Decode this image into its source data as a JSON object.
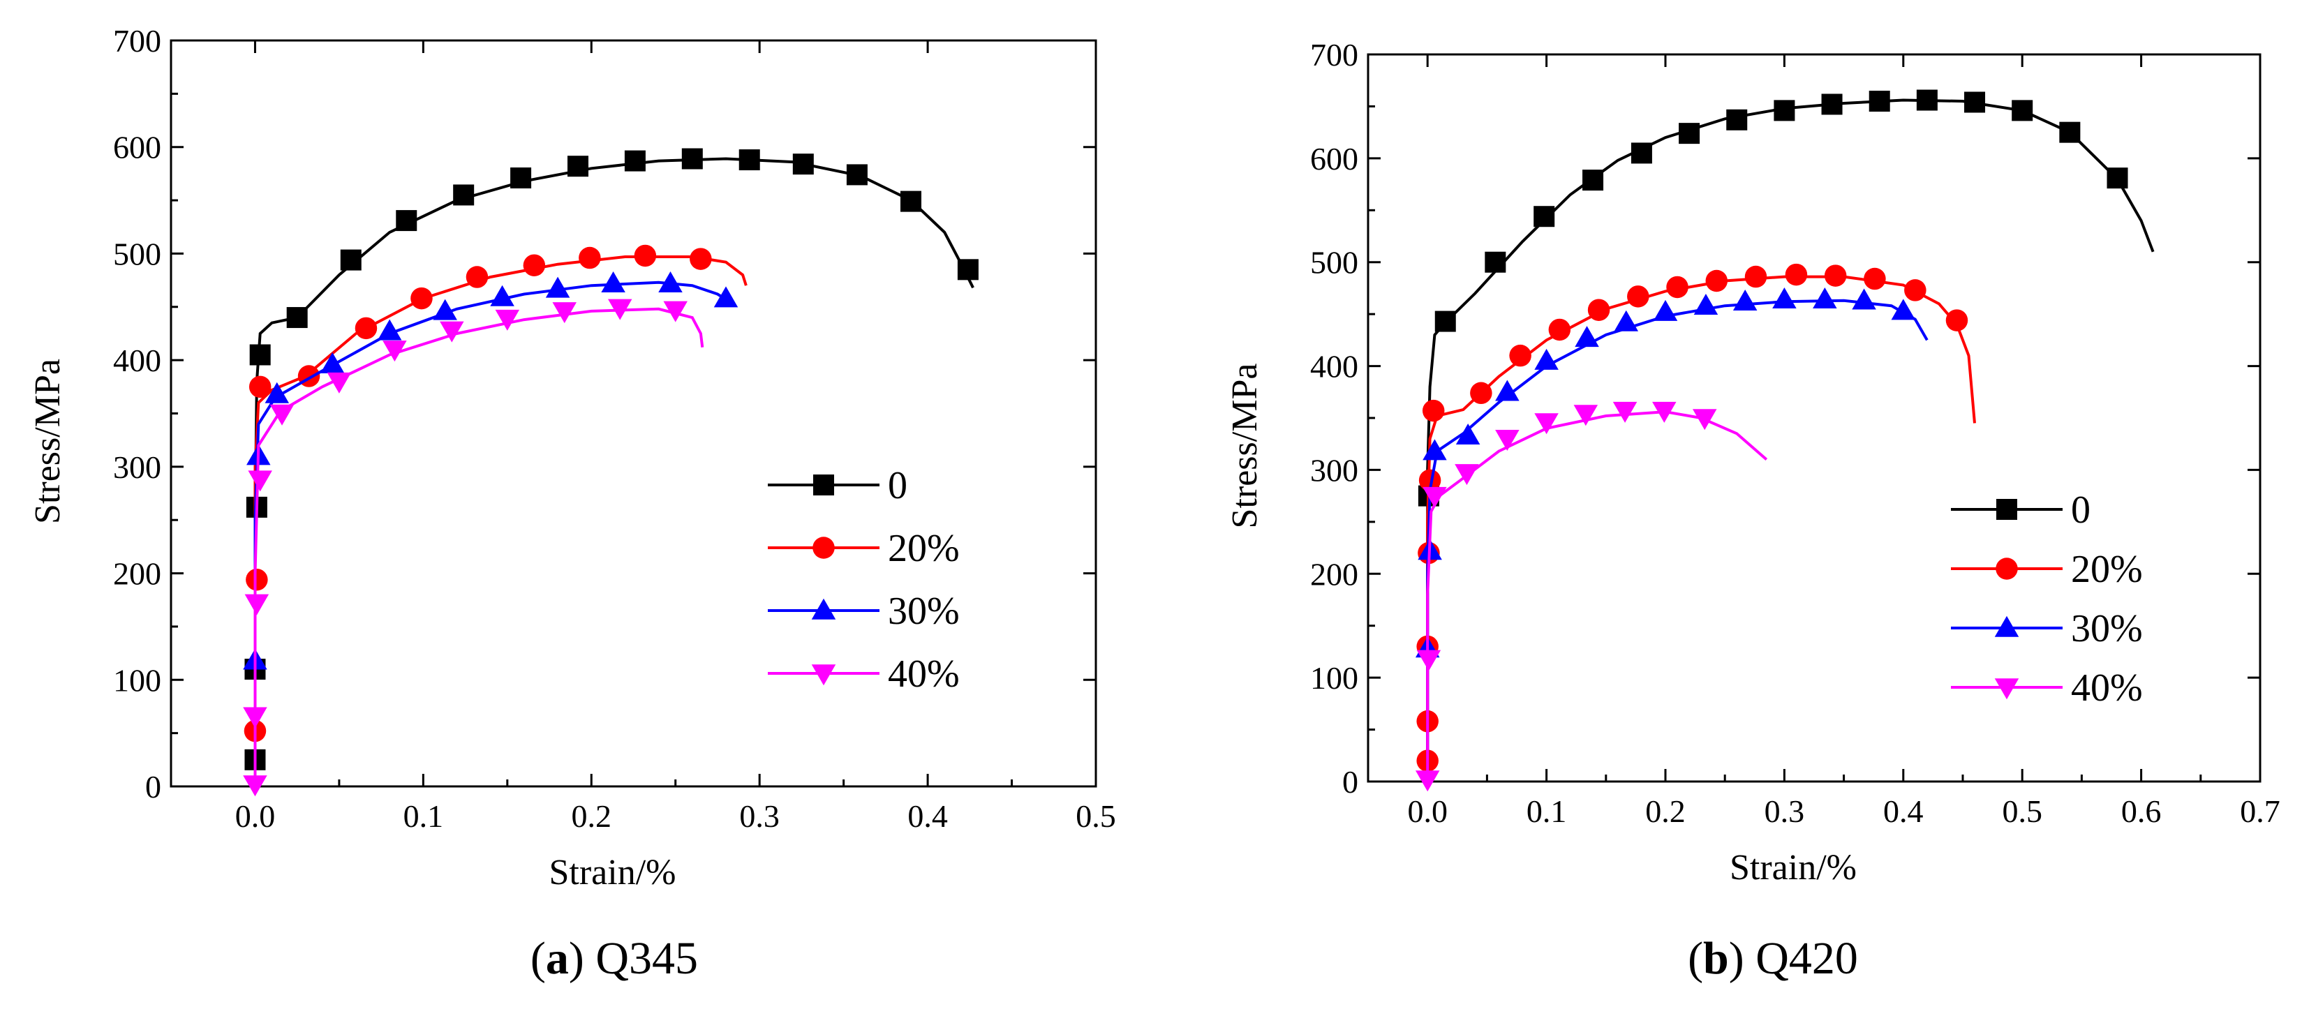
{
  "captions": [
    {
      "id": "a",
      "letter": "a",
      "text": "Q345"
    },
    {
      "id": "b",
      "letter": "b",
      "text": "Q420"
    }
  ],
  "series_colors": {
    "0": "#000000",
    "20%": "#ff0000",
    "30%": "#0000ff",
    "40%": "#ff00ff"
  },
  "chart_data": [
    {
      "type": "line",
      "title": "",
      "xlabel": "Strain/%",
      "ylabel": "Stress/MPa",
      "xlim": [
        -0.05,
        0.5
      ],
      "ylim": [
        0,
        700
      ],
      "xticks": [
        0.0,
        0.1,
        0.2,
        0.3,
        0.4,
        0.5
      ],
      "xtick_labels": [
        "0.0",
        "0.1",
        "0.2",
        "0.3",
        "0.4",
        "0.5"
      ],
      "yticks": [
        0,
        100,
        200,
        300,
        400,
        500,
        600,
        700
      ],
      "ytick_labels": [
        "0",
        "100",
        "200",
        "300",
        "400",
        "500",
        "600",
        "700"
      ],
      "grid": false,
      "legend_position": "right",
      "series": [
        {
          "name": "0",
          "marker": "square",
          "color": "#000000",
          "line": [
            [
              0.0,
              0
            ],
            [
              0.0,
              100
            ],
            [
              0.0,
              250
            ],
            [
              0.001,
              380
            ],
            [
              0.003,
              425
            ],
            [
              0.01,
              435
            ],
            [
              0.025,
              440
            ],
            [
              0.05,
              480
            ],
            [
              0.08,
              520
            ],
            [
              0.12,
              550
            ],
            [
              0.16,
              568
            ],
            [
              0.2,
              580
            ],
            [
              0.24,
              587
            ],
            [
              0.28,
              589
            ],
            [
              0.32,
              586
            ],
            [
              0.36,
              573
            ],
            [
              0.39,
              550
            ],
            [
              0.41,
              520
            ],
            [
              0.42,
              490
            ],
            [
              0.427,
              468
            ]
          ],
          "markers": [
            [
              0.0,
              25
            ],
            [
              0.0,
              110
            ],
            [
              0.001,
              262
            ],
            [
              0.003,
              405
            ],
            [
              0.025,
              440
            ],
            [
              0.057,
              494
            ],
            [
              0.09,
              531
            ],
            [
              0.124,
              555
            ],
            [
              0.158,
              571
            ],
            [
              0.192,
              582
            ],
            [
              0.226,
              587
            ],
            [
              0.26,
              589
            ],
            [
              0.294,
              588
            ],
            [
              0.326,
              584
            ],
            [
              0.358,
              574
            ],
            [
              0.39,
              549
            ],
            [
              0.424,
              485
            ]
          ]
        },
        {
          "name": "20%",
          "marker": "circle",
          "color": "#ff0000",
          "line": [
            [
              0.0,
              0
            ],
            [
              0.0,
              150
            ],
            [
              0.0,
              300
            ],
            [
              0.002,
              360
            ],
            [
              0.01,
              372
            ],
            [
              0.03,
              385
            ],
            [
              0.06,
              425
            ],
            [
              0.1,
              458
            ],
            [
              0.14,
              478
            ],
            [
              0.18,
              490
            ],
            [
              0.22,
              497
            ],
            [
              0.26,
              497
            ],
            [
              0.28,
              492
            ],
            [
              0.29,
              480
            ],
            [
              0.292,
              470
            ]
          ],
          "markers": [
            [
              0.0,
              52
            ],
            [
              0.001,
              194
            ],
            [
              0.003,
              375
            ],
            [
              0.032,
              385
            ],
            [
              0.066,
              430
            ],
            [
              0.099,
              458
            ],
            [
              0.132,
              478
            ],
            [
              0.166,
              489
            ],
            [
              0.199,
              496
            ],
            [
              0.232,
              498
            ],
            [
              0.265,
              495
            ]
          ]
        },
        {
          "name": "30%",
          "marker": "up-triangle",
          "color": "#0000ff",
          "line": [
            [
              0.0,
              0
            ],
            [
              0.0,
              120
            ],
            [
              0.0,
              250
            ],
            [
              0.002,
              340
            ],
            [
              0.012,
              365
            ],
            [
              0.04,
              390
            ],
            [
              0.08,
              425
            ],
            [
              0.12,
              448
            ],
            [
              0.16,
              462
            ],
            [
              0.2,
              470
            ],
            [
              0.24,
              473
            ],
            [
              0.26,
              470
            ],
            [
              0.275,
              462
            ],
            [
              0.285,
              452
            ]
          ],
          "markers": [
            [
              0.0,
              118
            ],
            [
              0.002,
              310
            ],
            [
              0.013,
              368
            ],
            [
              0.046,
              396
            ],
            [
              0.08,
              427
            ],
            [
              0.113,
              446
            ],
            [
              0.147,
              459
            ],
            [
              0.18,
              467
            ],
            [
              0.213,
              472
            ],
            [
              0.247,
              472
            ],
            [
              0.28,
              458
            ]
          ]
        },
        {
          "name": "40%",
          "marker": "down-triangle",
          "color": "#ff00ff",
          "line": [
            [
              0.0,
              0
            ],
            [
              0.0,
              80
            ],
            [
              0.0,
              200
            ],
            [
              0.002,
              320
            ],
            [
              0.015,
              352
            ],
            [
              0.04,
              375
            ],
            [
              0.08,
              405
            ],
            [
              0.12,
              425
            ],
            [
              0.16,
              438
            ],
            [
              0.2,
              446
            ],
            [
              0.24,
              448
            ],
            [
              0.26,
              440
            ],
            [
              0.265,
              425
            ],
            [
              0.266,
              412
            ]
          ],
          "markers": [
            [
              0.0,
              2
            ],
            [
              0.0,
              66
            ],
            [
              0.001,
              172
            ],
            [
              0.003,
              288
            ],
            [
              0.016,
              350
            ],
            [
              0.05,
              380
            ],
            [
              0.083,
              410
            ],
            [
              0.117,
              428
            ],
            [
              0.15,
              439
            ],
            [
              0.184,
              446
            ],
            [
              0.217,
              449
            ],
            [
              0.25,
              447
            ]
          ]
        }
      ]
    },
    {
      "type": "line",
      "title": "",
      "xlabel": "Strain/%",
      "ylabel": "Stress/MPa",
      "xlim": [
        -0.05,
        0.7
      ],
      "ylim": [
        0,
        700
      ],
      "xticks": [
        0.0,
        0.1,
        0.2,
        0.3,
        0.4,
        0.5,
        0.6,
        0.7
      ],
      "xtick_labels": [
        "0.0",
        "0.1",
        "0.2",
        "0.3",
        "0.4",
        "0.5",
        "0.6",
        "0.7"
      ],
      "yticks": [
        0,
        100,
        200,
        300,
        400,
        500,
        600,
        700
      ],
      "ytick_labels": [
        "0",
        "100",
        "200",
        "300",
        "400",
        "500",
        "600",
        "700"
      ],
      "grid": false,
      "legend_position": "right",
      "series": [
        {
          "name": "0",
          "marker": "square",
          "color": "#000000",
          "line": [
            [
              0.0,
              0
            ],
            [
              0.0,
              150
            ],
            [
              0.0,
              300
            ],
            [
              0.002,
              380
            ],
            [
              0.006,
              430
            ],
            [
              0.015,
              442
            ],
            [
              0.04,
              470
            ],
            [
              0.08,
              520
            ],
            [
              0.12,
              565
            ],
            [
              0.16,
              598
            ],
            [
              0.2,
              620
            ],
            [
              0.25,
              638
            ],
            [
              0.3,
              648
            ],
            [
              0.35,
              653
            ],
            [
              0.4,
              656
            ],
            [
              0.45,
              655
            ],
            [
              0.5,
              646
            ],
            [
              0.54,
              625
            ],
            [
              0.58,
              580
            ],
            [
              0.6,
              540
            ],
            [
              0.61,
              510
            ]
          ],
          "markers": [
            [
              0.001,
              275
            ],
            [
              0.015,
              443
            ],
            [
              0.057,
              500
            ],
            [
              0.098,
              544
            ],
            [
              0.139,
              579
            ],
            [
              0.18,
              605
            ],
            [
              0.22,
              624
            ],
            [
              0.26,
              637
            ],
            [
              0.3,
              646
            ],
            [
              0.34,
              652
            ],
            [
              0.38,
              655
            ],
            [
              0.42,
              656
            ],
            [
              0.46,
              654
            ],
            [
              0.5,
              646
            ],
            [
              0.54,
              625
            ],
            [
              0.58,
              581
            ]
          ]
        },
        {
          "name": "20%",
          "marker": "circle",
          "color": "#ff0000",
          "line": [
            [
              0.0,
              0
            ],
            [
              0.0,
              100
            ],
            [
              0.0,
              250
            ],
            [
              0.002,
              330
            ],
            [
              0.008,
              352
            ],
            [
              0.03,
              358
            ],
            [
              0.06,
              390
            ],
            [
              0.1,
              425
            ],
            [
              0.15,
              455
            ],
            [
              0.2,
              472
            ],
            [
              0.25,
              482
            ],
            [
              0.3,
              486
            ],
            [
              0.35,
              486
            ],
            [
              0.4,
              478
            ],
            [
              0.43,
              460
            ],
            [
              0.445,
              440
            ],
            [
              0.455,
              410
            ],
            [
              0.46,
              345
            ]
          ],
          "markers": [
            [
              0.0,
              20
            ],
            [
              0.0,
              58
            ],
            [
              0.0,
              130
            ],
            [
              0.001,
              220
            ],
            [
              0.002,
              290
            ],
            [
              0.005,
              357
            ],
            [
              0.045,
              374
            ],
            [
              0.078,
              410
            ],
            [
              0.111,
              435
            ],
            [
              0.144,
              454
            ],
            [
              0.177,
              467
            ],
            [
              0.21,
              476
            ],
            [
              0.243,
              482
            ],
            [
              0.276,
              486
            ],
            [
              0.31,
              488
            ],
            [
              0.343,
              487
            ],
            [
              0.376,
              484
            ],
            [
              0.41,
              473
            ],
            [
              0.445,
              444
            ]
          ]
        },
        {
          "name": "30%",
          "marker": "up-triangle",
          "color": "#0000ff",
          "line": [
            [
              0.0,
              0
            ],
            [
              0.0,
              100
            ],
            [
              0.0,
              200
            ],
            [
              0.002,
              280
            ],
            [
              0.008,
              318
            ],
            [
              0.03,
              335
            ],
            [
              0.06,
              365
            ],
            [
              0.1,
              400
            ],
            [
              0.15,
              430
            ],
            [
              0.2,
              448
            ],
            [
              0.25,
              458
            ],
            [
              0.3,
              462
            ],
            [
              0.35,
              463
            ],
            [
              0.39,
              458
            ],
            [
              0.41,
              445
            ],
            [
              0.42,
              425
            ]
          ],
          "markers": [
            [
              0.0,
              128
            ],
            [
              0.002,
              222
            ],
            [
              0.006,
              318
            ],
            [
              0.034,
              333
            ],
            [
              0.067,
              375
            ],
            [
              0.1,
              405
            ],
            [
              0.134,
              427
            ],
            [
              0.167,
              442
            ],
            [
              0.2,
              452
            ],
            [
              0.234,
              458
            ],
            [
              0.267,
              462
            ],
            [
              0.3,
              464
            ],
            [
              0.334,
              464
            ],
            [
              0.367,
              463
            ],
            [
              0.4,
              453
            ]
          ]
        },
        {
          "name": "40%",
          "marker": "down-triangle",
          "color": "#ff00ff",
          "line": [
            [
              0.0,
              0
            ],
            [
              0.0,
              80
            ],
            [
              0.0,
              180
            ],
            [
              0.003,
              260
            ],
            [
              0.01,
              275
            ],
            [
              0.03,
              292
            ],
            [
              0.06,
              318
            ],
            [
              0.1,
              340
            ],
            [
              0.15,
              352
            ],
            [
              0.2,
              356
            ],
            [
              0.23,
              350
            ],
            [
              0.26,
              335
            ],
            [
              0.285,
              310
            ]
          ],
          "markers": [
            [
              0.0,
              2
            ],
            [
              0.001,
              118
            ],
            [
              0.006,
              275
            ],
            [
              0.033,
              297
            ],
            [
              0.067,
              330
            ],
            [
              0.1,
              346
            ],
            [
              0.133,
              354
            ],
            [
              0.166,
              357
            ],
            [
              0.199,
              357
            ],
            [
              0.233,
              350
            ]
          ]
        }
      ]
    }
  ]
}
